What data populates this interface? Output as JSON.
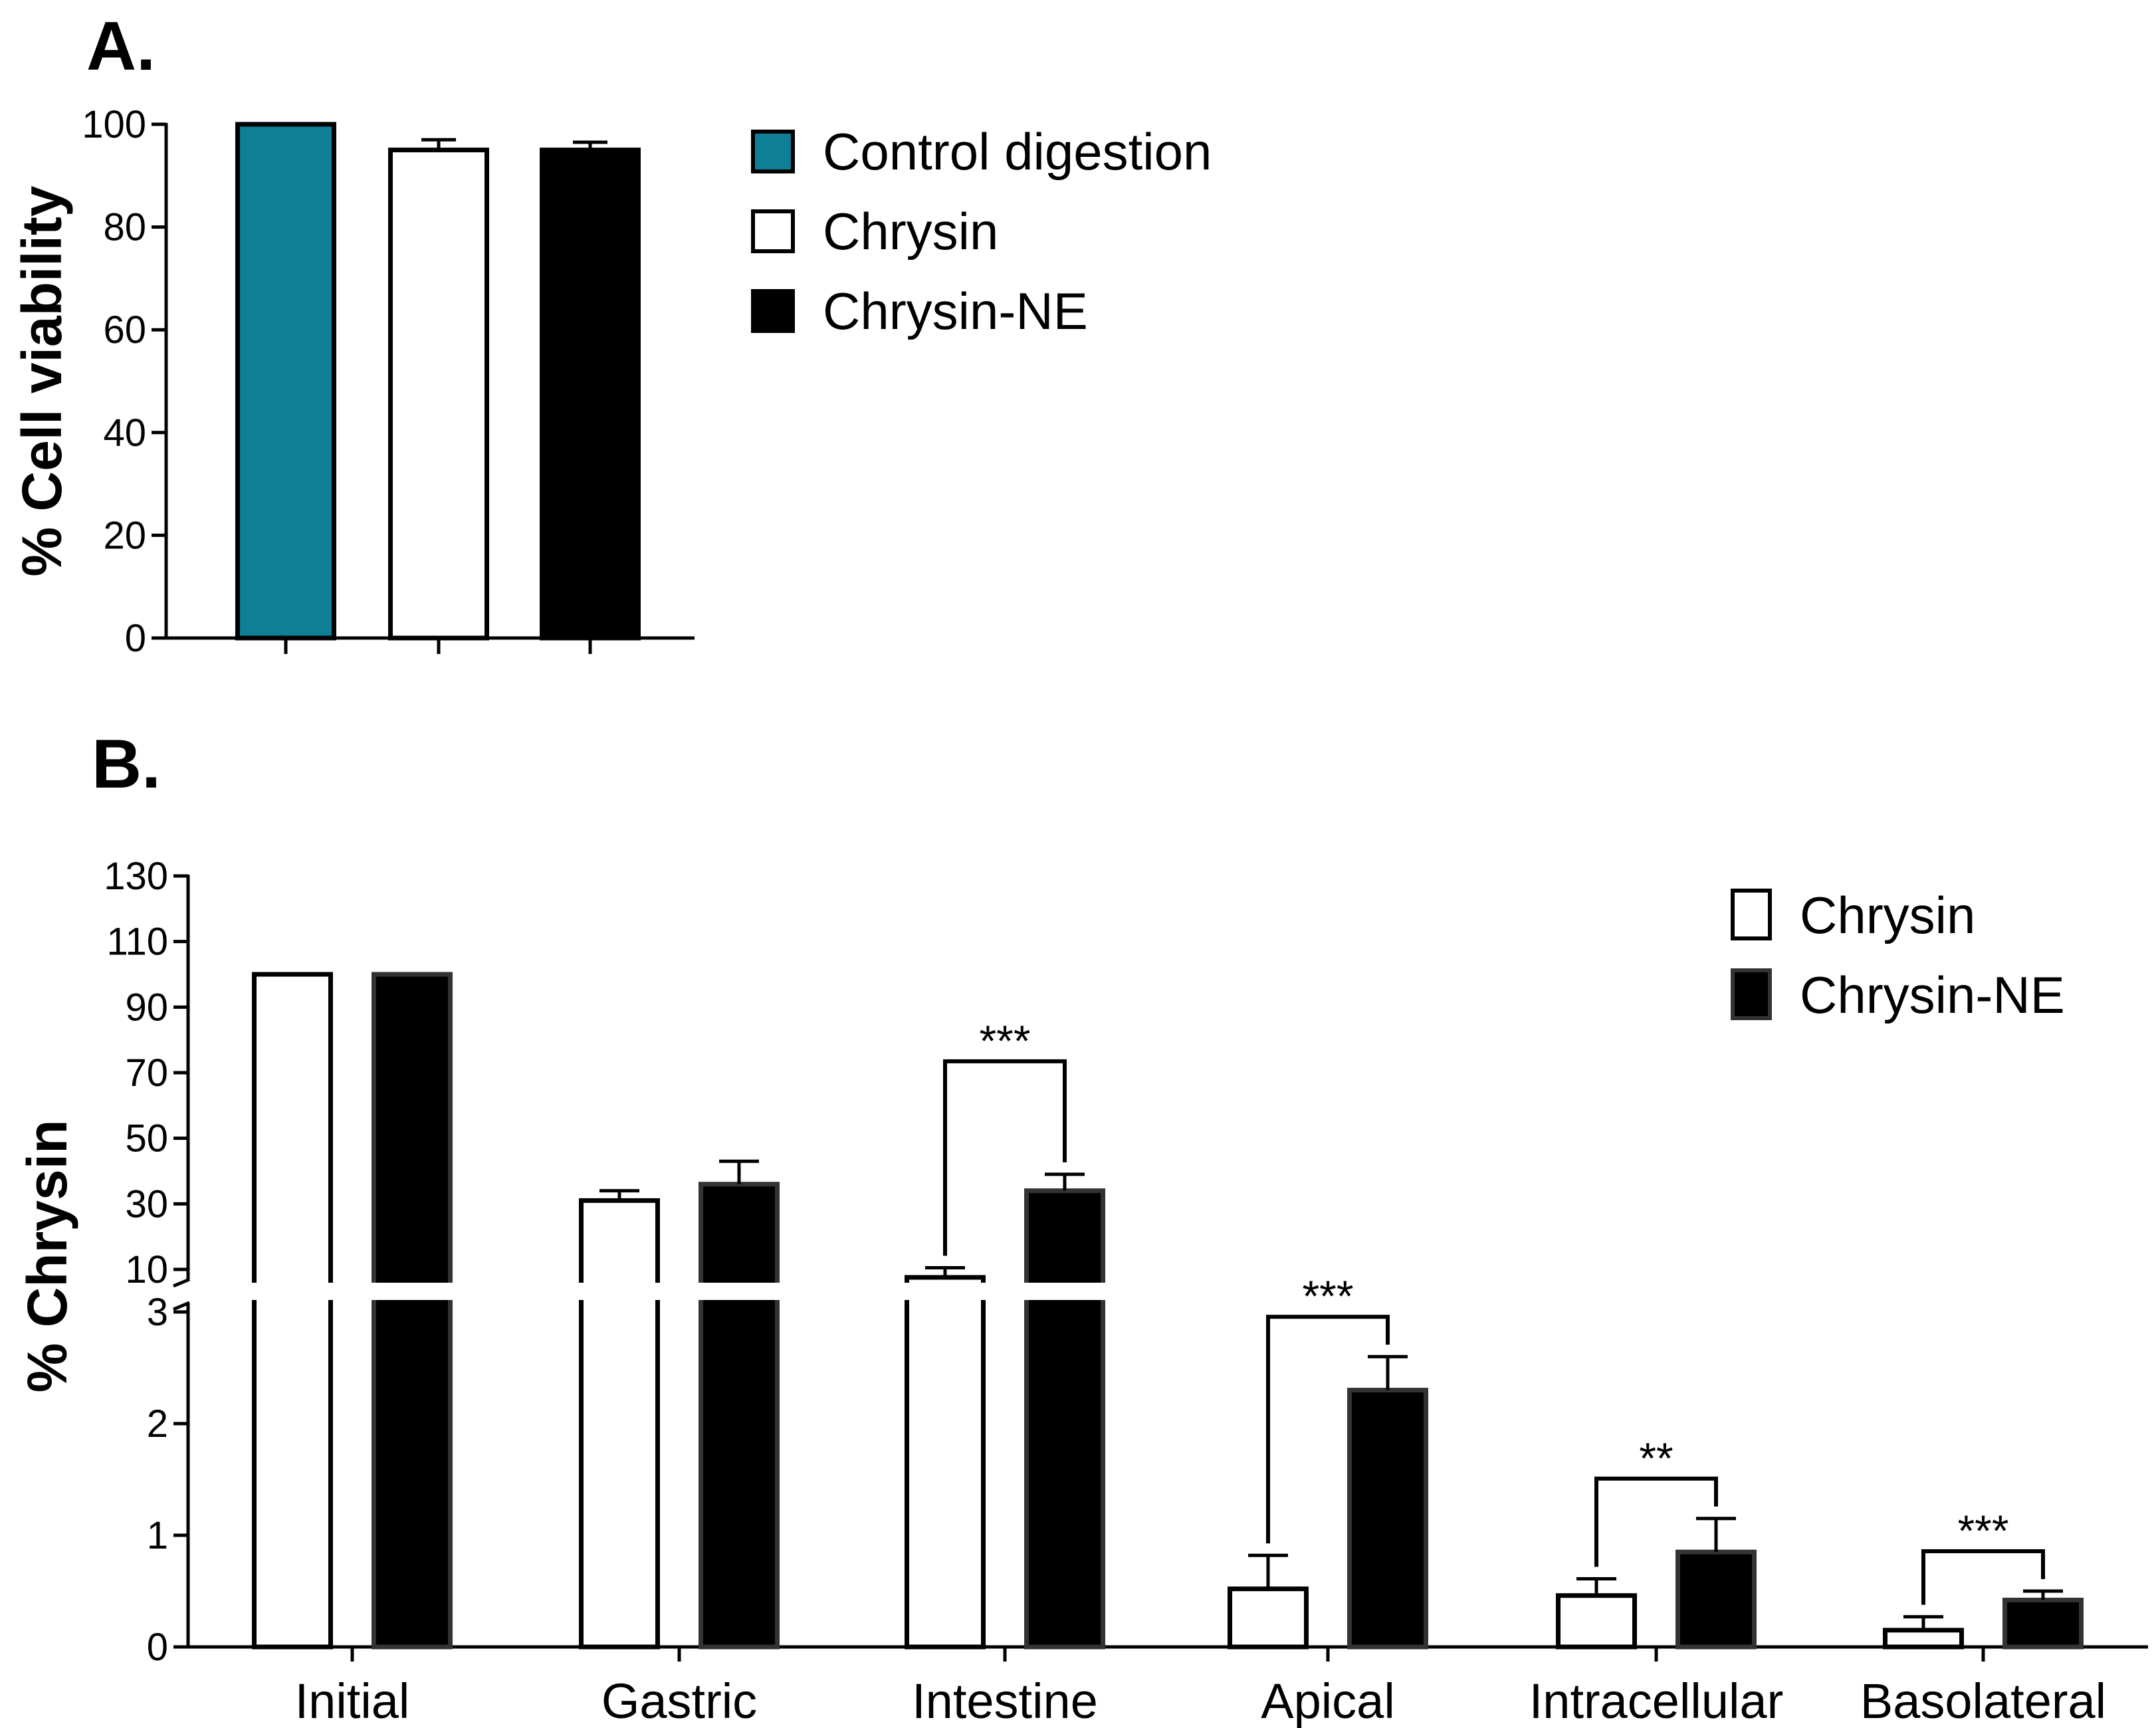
{
  "chart_data": [
    {
      "panel": "A.",
      "type": "bar",
      "ylabel": "% Cell viability",
      "ylim": [
        0,
        100
      ],
      "yticks": [
        "0",
        "20",
        "40",
        "60",
        "80",
        "100"
      ],
      "series": [
        {
          "name": "Control digestion",
          "values": [
            100
          ],
          "error": [
            0
          ],
          "color": "#0f7f95"
        },
        {
          "name": "Chrysin",
          "values": [
            95
          ],
          "error": [
            2
          ],
          "color": "#ffffff"
        },
        {
          "name": "Chrysin-NE",
          "values": [
            95
          ],
          "error": [
            1.5
          ],
          "color": "#000000"
        }
      ],
      "grid": false,
      "legend": "right"
    },
    {
      "panel": "B.",
      "type": "bar",
      "ylabel": "% Chrysin",
      "y_axis_break": {
        "lower_range": [
          0,
          3
        ],
        "upper_range": [
          10,
          130
        ]
      },
      "yticks_lower": [
        "0",
        "1",
        "2",
        "3"
      ],
      "yticks_upper": [
        "10",
        "30",
        "50",
        "70",
        "90",
        "110",
        "130"
      ],
      "categories": [
        "Initial",
        "Gastric",
        "Intestine",
        "Apical",
        "Intracellular",
        "Basolateral"
      ],
      "series": [
        {
          "name": "Chrysin",
          "values": [
            100,
            31,
            8,
            0.52,
            0.46,
            0.15
          ],
          "error": [
            0,
            3,
            2.5,
            0.3,
            0.15,
            0.12
          ],
          "color": "#ffffff"
        },
        {
          "name": "Chrysin-NE",
          "values": [
            100,
            36,
            34,
            2.3,
            0.85,
            0.42
          ],
          "error": [
            0,
            7,
            5,
            0.3,
            0.3,
            0.08
          ],
          "color": "#000000"
        }
      ],
      "significance": [
        {
          "category": "Intestine",
          "label": "***"
        },
        {
          "category": "Apical",
          "label": "***"
        },
        {
          "category": "Intracellular",
          "label": "**"
        },
        {
          "category": "Basolateral",
          "label": "***"
        }
      ],
      "grid": false,
      "legend": "top-right"
    }
  ]
}
